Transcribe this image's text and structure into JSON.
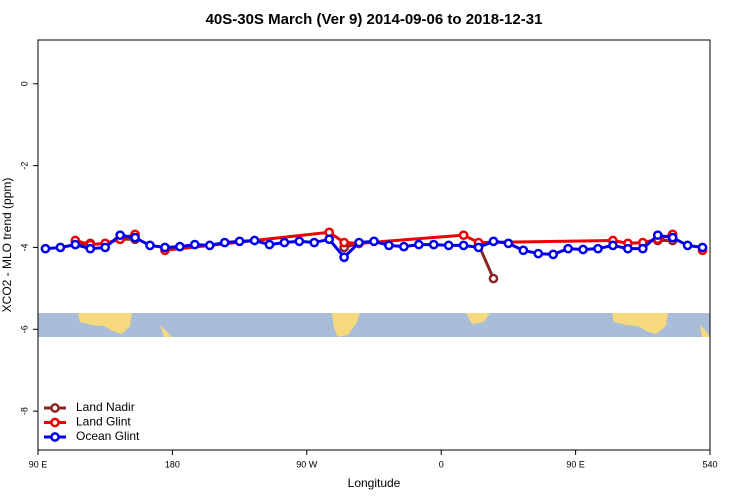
{
  "chart_data": {
    "type": "line",
    "title": "40S-30S March (Ver 9)   2014-09-06 to 2018-12-31",
    "x_label": "Longitude",
    "y_label": "XCO2 - MLO trend (ppm)",
    "xlim": [
      90,
      540
    ],
    "xticks": [
      {
        "value": 90,
        "label": "90 E"
      },
      180,
      {
        "value": 270,
        "label": "90 W"
      },
      {
        "value": 360,
        "label": "0"
      },
      {
        "value": 450,
        "label": "90 E"
      },
      540
    ],
    "xtick_labels_extra": null,
    "ylim": [
      -8.95,
      1.07
    ],
    "yticks": [
      0,
      -2,
      -4,
      -6,
      -8
    ],
    "legend": "bottom-left",
    "series": [
      {
        "name": "Land Nadir",
        "color": "#8b2525",
        "x": [
          115,
          125,
          135,
          145,
          155,
          285,
          295,
          305,
          375,
          385,
          395,
          495,
          505,
          515
        ],
        "values": [
          -3.93,
          -3.9,
          null,
          -3.8,
          -3.8,
          null,
          -4.0,
          -3.9,
          null,
          -3.93,
          -4.76,
          null,
          -3.83,
          -3.83
        ]
      },
      {
        "name": "Land Glint",
        "color": "#ee0000",
        "x": [
          115,
          125,
          135,
          145,
          155,
          165,
          175,
          285,
          295,
          305,
          375,
          385,
          475,
          485,
          495,
          505,
          515,
          525,
          535
        ],
        "values": [
          -3.83,
          -3.93,
          -3.9,
          -3.8,
          -3.68,
          null,
          -4.07,
          -3.63,
          -3.88,
          -3.9,
          -3.7,
          -3.88,
          -3.83,
          -3.9,
          -3.88,
          -3.8,
          -3.68,
          null,
          -4.07
        ]
      },
      {
        "name": "Ocean Glint",
        "color": "#0000ee",
        "x": [
          95,
          105,
          115,
          125,
          135,
          145,
          155,
          165,
          175,
          185,
          195,
          205,
          215,
          225,
          235,
          245,
          255,
          265,
          275,
          285,
          295,
          305,
          315,
          325,
          335,
          345,
          355,
          365,
          375,
          385,
          395,
          405,
          415,
          425,
          435,
          445,
          455,
          465,
          475,
          485,
          495,
          505,
          515,
          525,
          535
        ],
        "values": [
          -4.03,
          -4.0,
          -3.93,
          -4.03,
          -4.0,
          -3.7,
          -3.76,
          -3.95,
          -4.0,
          -3.98,
          -3.93,
          -3.95,
          -3.88,
          -3.85,
          -3.83,
          -3.93,
          -3.88,
          -3.85,
          -3.88,
          -3.8,
          -4.24,
          -3.88,
          -3.85,
          -3.95,
          -3.98,
          -3.93,
          -3.93,
          -3.95,
          -3.95,
          -4.0,
          -3.85,
          -3.9,
          -4.07,
          -4.15,
          -4.17,
          -4.03,
          -4.05,
          -4.03,
          -3.95,
          -4.03,
          -4.03,
          -3.7,
          -3.76,
          -3.95,
          -4.0
        ]
      }
    ]
  }
}
